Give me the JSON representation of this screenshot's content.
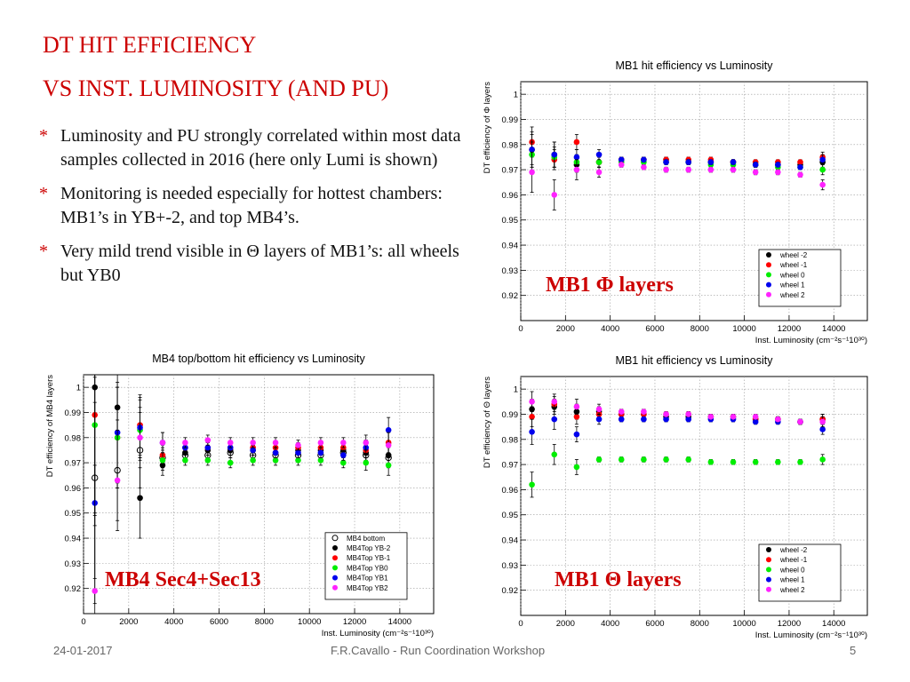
{
  "slide": {
    "title_line1": "DT HIT EFFICIENCY",
    "title_line2": "VS INST. LUMINOSITY (AND PU)",
    "bullets": [
      {
        "star": "*",
        "text": "Luminosity and PU strongly correlated within most data samples collected in 2016 (here only Lumi is shown)"
      },
      {
        "star": "*",
        "text": "Monitoring is needed especially for hottest chambers: MB1’s in YB+-2, and top MB4’s."
      },
      {
        "star": "*",
        "text": "Very mild trend visible in Θ layers of MB1’s: all wheels but YB0"
      }
    ],
    "footer_date": "24-01-2017",
    "footer_center": "F.R.Cavallo - Run Coordination Workshop",
    "footer_page": "5"
  },
  "overlays": {
    "phi": "MB1 Φ layers",
    "mb4": "MB4 Sec4+Sec13",
    "theta": "MB1 Θ layers"
  },
  "chart_data": [
    {
      "type": "scatter",
      "title": "MB1 hit efficiency vs Luminosity",
      "xlabel": "Inst. Luminosity (cm⁻²s⁻¹10³⁰)",
      "ylabel": "DT efficiency of Φ layers",
      "xlim": [
        0,
        15500
      ],
      "ylim": [
        0.91,
        1.005
      ],
      "x_ticks": [
        0,
        2000,
        4000,
        6000,
        8000,
        10000,
        12000,
        14000
      ],
      "y_ticks": [
        0.92,
        0.93,
        0.94,
        0.95,
        0.96,
        0.97,
        0.98,
        0.99,
        1
      ],
      "grid": true,
      "legend_position": "bottom-right",
      "x": [
        500,
        1500,
        2500,
        3500,
        4500,
        5500,
        6500,
        7500,
        8500,
        9500,
        10500,
        11500,
        12500,
        13500
      ],
      "series": [
        {
          "name": "wheel -2",
          "color": "#000000",
          "marker": "dot",
          "values": [
            0.978,
            0.976,
            0.972,
            0.973,
            0.974,
            0.974,
            0.974,
            0.973,
            0.973,
            0.973,
            0.972,
            0.972,
            0.972,
            0.973
          ],
          "errors": [
            0.007,
            0.005,
            0.003,
            0.002,
            0.001,
            0.001,
            0.001,
            0.001,
            0.001,
            0.001,
            0.001,
            0.001,
            0.001,
            0.002
          ]
        },
        {
          "name": "wheel -1",
          "color": "#ff0000",
          "marker": "dot",
          "values": [
            0.981,
            0.974,
            0.981,
            0.973,
            0.974,
            0.974,
            0.974,
            0.974,
            0.974,
            0.973,
            0.973,
            0.973,
            0.973,
            0.975
          ],
          "errors": [
            0.006,
            0.004,
            0.003,
            0.002,
            0.001,
            0.001,
            0.001,
            0.001,
            0.001,
            0.001,
            0.001,
            0.001,
            0.001,
            0.002
          ]
        },
        {
          "name": "wheel 0",
          "color": "#00ee00",
          "marker": "dot",
          "values": [
            0.976,
            0.975,
            0.973,
            0.973,
            0.973,
            0.973,
            0.973,
            0.973,
            0.972,
            0.972,
            0.972,
            0.971,
            0.971,
            0.97
          ],
          "errors": [
            0.005,
            0.004,
            0.003,
            0.002,
            0.001,
            0.001,
            0.001,
            0.001,
            0.001,
            0.001,
            0.001,
            0.001,
            0.001,
            0.002
          ]
        },
        {
          "name": "wheel 1",
          "color": "#0000ee",
          "marker": "dot",
          "values": [
            0.978,
            0.976,
            0.975,
            0.976,
            0.974,
            0.974,
            0.973,
            0.973,
            0.973,
            0.973,
            0.972,
            0.972,
            0.971,
            0.974
          ],
          "errors": [
            0.006,
            0.005,
            0.003,
            0.002,
            0.001,
            0.001,
            0.001,
            0.001,
            0.001,
            0.001,
            0.001,
            0.001,
            0.001,
            0.002
          ]
        },
        {
          "name": "wheel 2",
          "color": "#ff22ff",
          "marker": "dot",
          "values": [
            0.969,
            0.96,
            0.97,
            0.969,
            0.972,
            0.971,
            0.97,
            0.97,
            0.97,
            0.97,
            0.969,
            0.969,
            0.968,
            0.964
          ],
          "errors": [
            0.008,
            0.006,
            0.004,
            0.002,
            0.001,
            0.001,
            0.001,
            0.001,
            0.001,
            0.001,
            0.001,
            0.001,
            0.001,
            0.002
          ]
        }
      ]
    },
    {
      "type": "scatter",
      "title": "MB4 top/bottom hit efficiency vs Luminosity",
      "xlabel": "Inst. Luminosity (cm⁻²s⁻¹10³⁰)",
      "ylabel": "DT efficiency of MB4 layers",
      "xlim": [
        0,
        15500
      ],
      "ylim": [
        0.91,
        1.005
      ],
      "x_ticks": [
        0,
        2000,
        4000,
        6000,
        8000,
        10000,
        12000,
        14000
      ],
      "y_ticks": [
        0.92,
        0.93,
        0.94,
        0.95,
        0.96,
        0.97,
        0.98,
        0.99,
        1
      ],
      "grid": true,
      "legend_position": "bottom-right",
      "x": [
        500,
        1500,
        2500,
        3500,
        4500,
        5500,
        6500,
        7500,
        8500,
        9500,
        10500,
        11500,
        12500,
        13500
      ],
      "series": [
        {
          "name": "MB4 bottom",
          "color": "#000000",
          "marker": "open",
          "values": [
            0.964,
            0.967,
            0.975,
            0.972,
            0.973,
            0.973,
            0.974,
            0.973,
            0.973,
            0.973,
            0.973,
            0.974,
            0.973,
            0.972
          ],
          "errors": [
            0.04,
            0.02,
            0.015,
            0.004,
            0.002,
            0.002,
            0.002,
            0.002,
            0.002,
            0.002,
            0.002,
            0.002,
            0.003,
            0.004
          ]
        },
        {
          "name": "MB4Top YB-2",
          "color": "#000000",
          "marker": "dot",
          "values": [
            1.0,
            0.992,
            0.956,
            0.969,
            0.974,
            0.975,
            0.975,
            0.975,
            0.974,
            0.975,
            0.975,
            0.975,
            0.974,
            0.973
          ],
          "errors": [
            0.05,
            0.03,
            0.016,
            0.004,
            0.002,
            0.002,
            0.002,
            0.002,
            0.002,
            0.002,
            0.002,
            0.002,
            0.003,
            0.004
          ]
        },
        {
          "name": "MB4Top YB-1",
          "color": "#ff0000",
          "marker": "dot",
          "values": [
            0.989,
            0.98,
            0.985,
            0.973,
            0.976,
            0.976,
            0.976,
            0.976,
            0.976,
            0.976,
            0.976,
            0.976,
            0.975,
            0.978
          ],
          "errors": [
            0.04,
            0.02,
            0.012,
            0.004,
            0.002,
            0.002,
            0.002,
            0.002,
            0.002,
            0.002,
            0.002,
            0.002,
            0.003,
            0.004
          ]
        },
        {
          "name": "MB4Top YB0",
          "color": "#00ee00",
          "marker": "dot",
          "values": [
            0.985,
            0.98,
            0.983,
            0.971,
            0.971,
            0.971,
            0.97,
            0.971,
            0.971,
            0.971,
            0.971,
            0.97,
            0.97,
            0.969
          ],
          "errors": [
            0.04,
            0.02,
            0.012,
            0.004,
            0.002,
            0.002,
            0.002,
            0.002,
            0.002,
            0.002,
            0.002,
            0.002,
            0.003,
            0.004
          ]
        },
        {
          "name": "MB4Top YB1",
          "color": "#0000ee",
          "marker": "dot",
          "values": [
            0.954,
            0.982,
            0.984,
            0.978,
            0.976,
            0.976,
            0.976,
            0.975,
            0.974,
            0.974,
            0.974,
            0.973,
            0.976,
            0.983
          ],
          "errors": [
            0.04,
            0.02,
            0.012,
            0.004,
            0.002,
            0.002,
            0.002,
            0.002,
            0.002,
            0.002,
            0.002,
            0.002,
            0.003,
            0.005
          ]
        },
        {
          "name": "MB4Top YB2",
          "color": "#ff22ff",
          "marker": "dot",
          "values": [
            0.919,
            0.963,
            0.98,
            0.978,
            0.978,
            0.979,
            0.978,
            0.978,
            0.978,
            0.977,
            0.978,
            0.978,
            0.978,
            0.977
          ],
          "errors": [
            0.05,
            0.02,
            0.012,
            0.004,
            0.002,
            0.002,
            0.002,
            0.002,
            0.002,
            0.002,
            0.002,
            0.002,
            0.003,
            0.005
          ]
        }
      ]
    },
    {
      "type": "scatter",
      "title": "MB1 hit efficiency vs Luminosity",
      "xlabel": "Inst. Luminosity (cm⁻²s⁻¹10³⁰)",
      "ylabel": "DT efficiency of Θ layers",
      "xlim": [
        0,
        15500
      ],
      "ylim": [
        0.91,
        1.005
      ],
      "x_ticks": [
        0,
        2000,
        4000,
        6000,
        8000,
        10000,
        12000,
        14000
      ],
      "y_ticks": [
        0.92,
        0.93,
        0.94,
        0.95,
        0.96,
        0.97,
        0.98,
        0.99,
        1
      ],
      "grid": true,
      "legend_position": "bottom-right",
      "x": [
        500,
        1500,
        2500,
        3500,
        4500,
        5500,
        6500,
        7500,
        8500,
        9500,
        10500,
        11500,
        12500,
        13500
      ],
      "series": [
        {
          "name": "wheel -2",
          "color": "#000000",
          "marker": "dot",
          "values": [
            0.992,
            0.993,
            0.991,
            0.991,
            0.99,
            0.99,
            0.989,
            0.989,
            0.989,
            0.989,
            0.988,
            0.988,
            0.987,
            0.988
          ],
          "errors": [
            0.004,
            0.003,
            0.003,
            0.002,
            0.001,
            0.001,
            0.001,
            0.001,
            0.001,
            0.001,
            0.001,
            0.001,
            0.001,
            0.002
          ]
        },
        {
          "name": "wheel -1",
          "color": "#ff0000",
          "marker": "dot",
          "values": [
            0.989,
            0.994,
            0.989,
            0.99,
            0.99,
            0.99,
            0.99,
            0.99,
            0.989,
            0.989,
            0.988,
            0.988,
            0.987,
            0.988
          ],
          "errors": [
            0.004,
            0.003,
            0.003,
            0.002,
            0.001,
            0.001,
            0.001,
            0.001,
            0.001,
            0.001,
            0.001,
            0.001,
            0.001,
            0.002
          ]
        },
        {
          "name": "wheel 0",
          "color": "#00ee00",
          "marker": "dot",
          "values": [
            0.962,
            0.974,
            0.969,
            0.972,
            0.972,
            0.972,
            0.972,
            0.972,
            0.971,
            0.971,
            0.971,
            0.971,
            0.971,
            0.972
          ],
          "errors": [
            0.005,
            0.004,
            0.003,
            0.001,
            0.001,
            0.001,
            0.001,
            0.001,
            0.001,
            0.001,
            0.001,
            0.001,
            0.001,
            0.002
          ]
        },
        {
          "name": "wheel 1",
          "color": "#0000ee",
          "marker": "dot",
          "values": [
            0.983,
            0.988,
            0.982,
            0.988,
            0.988,
            0.988,
            0.988,
            0.988,
            0.988,
            0.988,
            0.987,
            0.987,
            0.987,
            0.984
          ],
          "errors": [
            0.005,
            0.004,
            0.003,
            0.002,
            0.001,
            0.001,
            0.001,
            0.001,
            0.001,
            0.001,
            0.001,
            0.001,
            0.001,
            0.002
          ]
        },
        {
          "name": "wheel 2",
          "color": "#ff22ff",
          "marker": "dot",
          "values": [
            0.995,
            0.995,
            0.993,
            0.992,
            0.991,
            0.991,
            0.99,
            0.99,
            0.989,
            0.989,
            0.989,
            0.988,
            0.987,
            0.987
          ],
          "errors": [
            0.004,
            0.003,
            0.003,
            0.002,
            0.001,
            0.001,
            0.001,
            0.001,
            0.001,
            0.001,
            0.001,
            0.001,
            0.001,
            0.002
          ]
        }
      ]
    }
  ]
}
